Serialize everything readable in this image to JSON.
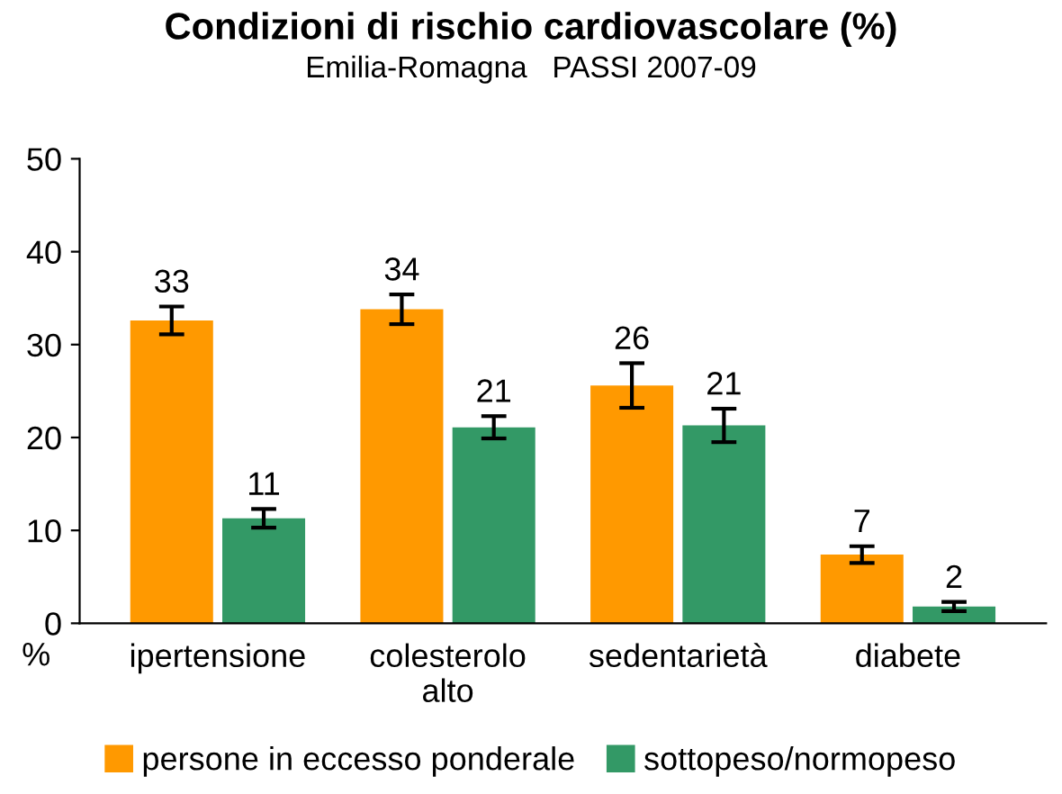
{
  "chart_data": {
    "type": "bar",
    "title": "Condizioni di rischio cardiovascolare (%)",
    "subtitle": "Emilia-Romagna   PASSI 2007-09",
    "ylabel": "%",
    "categories": [
      "ipertensione",
      "colesterolo\nalto",
      "sedentarietà",
      "diabete"
    ],
    "series": [
      {
        "name": "persone in eccesso ponderale",
        "color": "#ff9900",
        "values": [
          32.6,
          33.8,
          25.6,
          7.4
        ],
        "errors": [
          1.5,
          1.6,
          2.4,
          0.9
        ],
        "value_labels": [
          "33",
          "34",
          "26",
          "7"
        ]
      },
      {
        "name": "sottopeso/normopeso",
        "color": "#339966",
        "values": [
          11.3,
          21.1,
          21.3,
          1.8
        ],
        "errors": [
          1.0,
          1.2,
          1.8,
          0.5
        ],
        "value_labels": [
          "11",
          "21",
          "21",
          "2"
        ]
      }
    ],
    "ylim": [
      0,
      50
    ],
    "yticks": [
      0,
      10,
      20,
      30,
      40,
      50
    ],
    "grid": false,
    "legend": "bottom"
  }
}
